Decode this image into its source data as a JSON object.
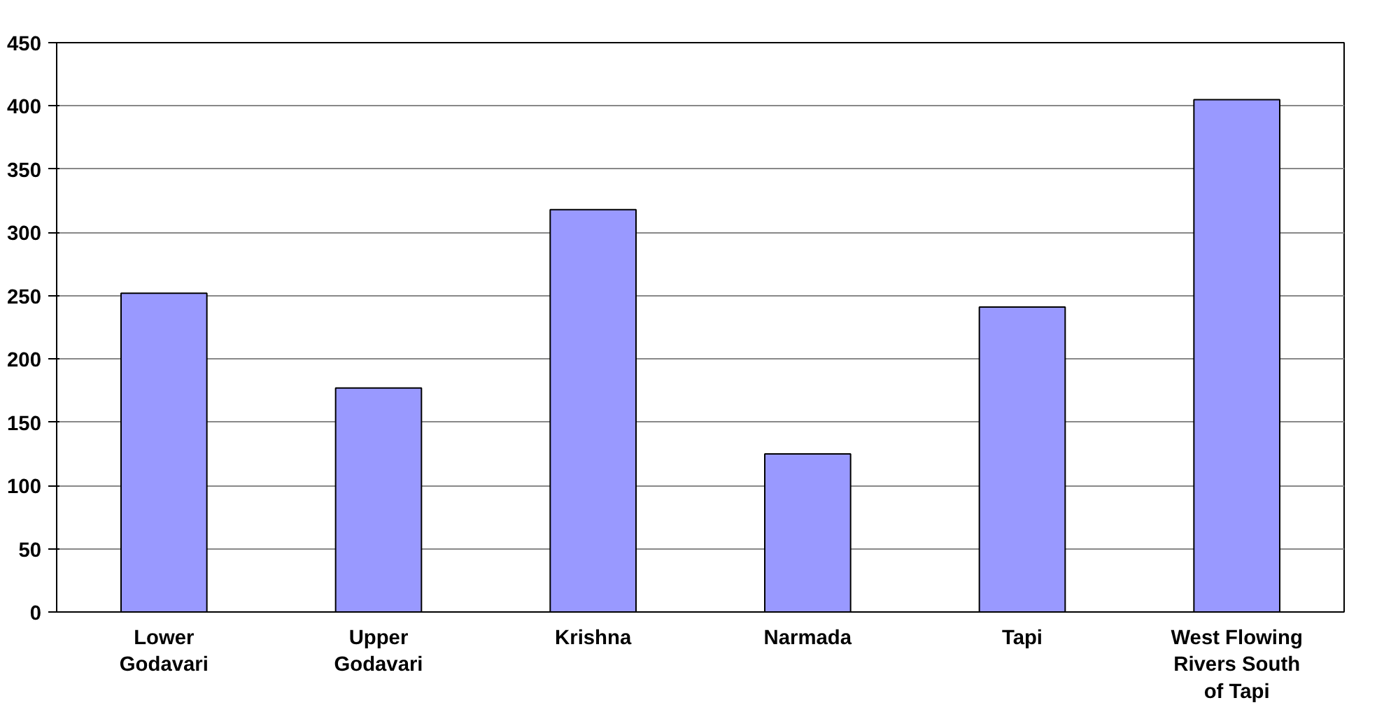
{
  "chart_data": {
    "type": "bar",
    "categories": [
      "Lower Godavari",
      "Upper Godavari",
      "Krishna",
      "Narmada",
      "Tapi",
      "West Flowing Rivers South of Tapi"
    ],
    "values": [
      252,
      177,
      318,
      125,
      241,
      405
    ],
    "color": "#9999ff",
    "ylim": [
      0,
      450
    ],
    "yticks": [
      0,
      50,
      100,
      150,
      200,
      250,
      300,
      350,
      400,
      450
    ],
    "grid": "y"
  }
}
